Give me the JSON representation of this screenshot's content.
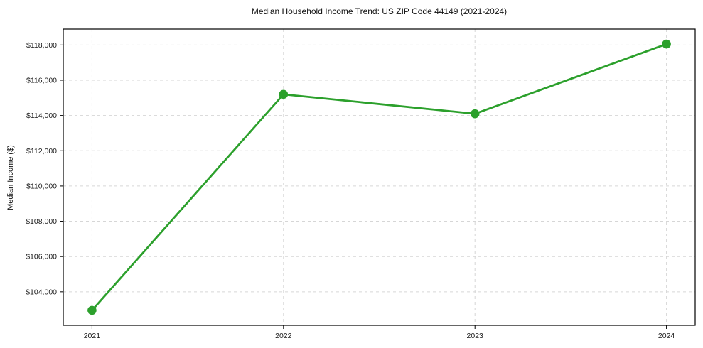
{
  "chart_data": {
    "type": "line",
    "title": "Median Household Income Trend: US ZIP Code 44149 (2021-2024)",
    "xlabel": "",
    "ylabel": "Median Income ($)",
    "x": [
      2021,
      2022,
      2023,
      2024
    ],
    "series": [
      {
        "name": "Median Household Income",
        "values": [
          102950,
          115200,
          114100,
          118050
        ]
      }
    ],
    "xlim": [
      2020.85,
      2024.15
    ],
    "ylim": [
      102100,
      118900
    ],
    "xticks": [
      {
        "value": 2021,
        "label": "2021"
      },
      {
        "value": 2022,
        "label": "2022"
      },
      {
        "value": 2023,
        "label": "2023"
      },
      {
        "value": 2024,
        "label": "2024"
      }
    ],
    "yticks": [
      {
        "value": 104000,
        "label": "$104,000"
      },
      {
        "value": 106000,
        "label": "$106,000"
      },
      {
        "value": 108000,
        "label": "$108,000"
      },
      {
        "value": 110000,
        "label": "$110,000"
      },
      {
        "value": 112000,
        "label": "$112,000"
      },
      {
        "value": 114000,
        "label": "$114,000"
      },
      {
        "value": 116000,
        "label": "$116,000"
      },
      {
        "value": 118000,
        "label": "$118,000"
      }
    ],
    "grid": true,
    "legend_position": "none",
    "line_color": "#2ca02c",
    "grid_color": "#d6d6d6",
    "spine_color": "#000000",
    "marker": "circle"
  }
}
